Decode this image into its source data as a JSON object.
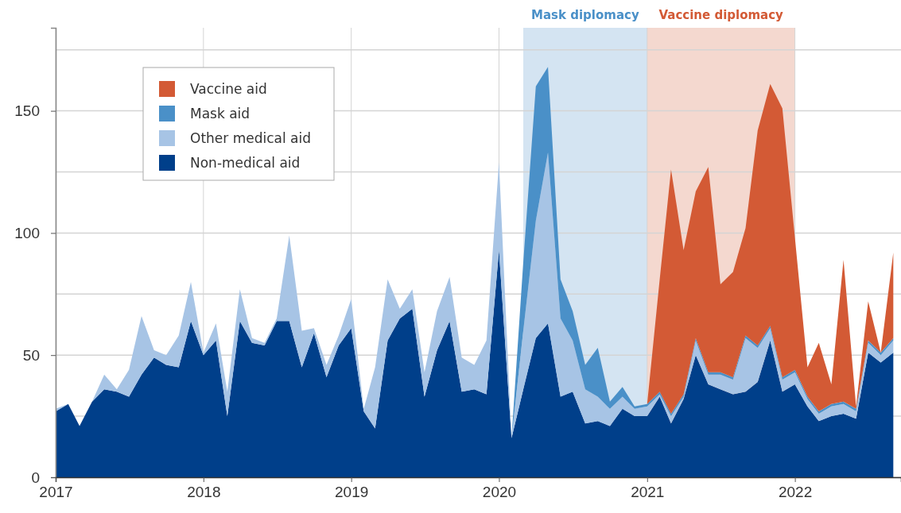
{
  "chart_data": {
    "type": "area",
    "stacked": true,
    "x": [
      "2017-01",
      "2017-02",
      "2017-03",
      "2017-04",
      "2017-05",
      "2017-06",
      "2017-07",
      "2017-08",
      "2017-09",
      "2017-10",
      "2017-11",
      "2017-12",
      "2018-01",
      "2018-02",
      "2018-03",
      "2018-04",
      "2018-05",
      "2018-06",
      "2018-07",
      "2018-08",
      "2018-09",
      "2018-10",
      "2018-11",
      "2018-12",
      "2019-01",
      "2019-02",
      "2019-03",
      "2019-04",
      "2019-05",
      "2019-06",
      "2019-07",
      "2019-08",
      "2019-09",
      "2019-10",
      "2019-11",
      "2019-12",
      "2020-01",
      "2020-02",
      "2020-03",
      "2020-04",
      "2020-05",
      "2020-06",
      "2020-07",
      "2020-08",
      "2020-09",
      "2020-10",
      "2020-11",
      "2020-12",
      "2021-01",
      "2021-02",
      "2021-03",
      "2021-04",
      "2021-05",
      "2021-06",
      "2021-07",
      "2021-08",
      "2021-09",
      "2021-10",
      "2021-11",
      "2021-12",
      "2022-01",
      "2022-02",
      "2022-03",
      "2022-04",
      "2022-05",
      "2022-06",
      "2022-07",
      "2022-08",
      "2022-09"
    ],
    "series": [
      {
        "name": "Non-medical aid",
        "color": "#003f8a",
        "values": [
          27,
          30,
          21,
          31,
          36,
          35,
          33,
          42,
          49,
          46,
          45,
          64,
          50,
          56,
          25,
          64,
          55,
          54,
          64,
          64,
          45,
          59,
          41,
          54,
          61,
          27,
          20,
          56,
          65,
          69,
          33,
          52,
          64,
          35,
          36,
          34,
          93,
          16,
          36,
          57,
          63,
          33,
          35,
          22,
          23,
          21,
          28,
          25,
          25,
          33,
          22,
          32,
          50,
          38,
          36,
          34,
          35,
          39,
          56,
          35,
          38,
          29,
          23,
          25,
          26,
          24,
          51,
          47,
          51
        ]
      },
      {
        "name": "Other medical aid",
        "color": "#a7c4e5",
        "values": [
          1,
          0,
          0,
          0,
          6,
          1,
          11,
          24,
          3,
          4,
          13,
          16,
          1,
          7,
          10,
          13,
          2,
          1,
          1,
          35,
          15,
          2,
          5,
          4,
          12,
          1,
          25,
          25,
          4,
          8,
          10,
          16,
          18,
          14,
          10,
          22,
          36,
          0,
          24,
          48,
          70,
          32,
          21,
          14,
          10,
          7,
          5,
          3,
          4,
          1,
          3,
          1,
          6,
          4,
          6,
          6,
          22,
          14,
          5,
          5,
          5,
          3,
          3,
          4,
          4,
          3,
          4,
          3,
          5
        ]
      },
      {
        "name": "Mask aid",
        "color": "#4a90c8",
        "values": [
          null,
          null,
          null,
          null,
          null,
          null,
          null,
          null,
          null,
          null,
          null,
          null,
          null,
          null,
          null,
          null,
          null,
          null,
          null,
          null,
          null,
          null,
          null,
          null,
          null,
          null,
          null,
          null,
          null,
          null,
          null,
          null,
          null,
          null,
          null,
          null,
          null,
          0,
          28,
          55,
          35,
          16,
          12,
          10,
          20,
          3,
          4,
          1,
          1,
          1,
          1,
          1,
          1,
          1,
          1,
          1,
          1,
          1,
          1,
          1,
          1,
          1,
          1,
          1,
          1,
          1,
          1,
          1,
          1
        ]
      },
      {
        "name": "Vaccine aid",
        "color": "#d35a35",
        "values": [
          null,
          null,
          null,
          null,
          null,
          null,
          null,
          null,
          null,
          null,
          null,
          null,
          null,
          null,
          null,
          null,
          null,
          null,
          null,
          null,
          null,
          null,
          null,
          null,
          null,
          null,
          null,
          null,
          null,
          null,
          null,
          null,
          null,
          null,
          null,
          null,
          null,
          null,
          null,
          null,
          null,
          null,
          null,
          null,
          null,
          null,
          null,
          null,
          0,
          46,
          100,
          59,
          60,
          84,
          36,
          43,
          44,
          88,
          99,
          110,
          54,
          12,
          28,
          8,
          58,
          1,
          16,
          0,
          35
        ]
      }
    ],
    "xlim": [
      "2017-01-01",
      "2022-09-20"
    ],
    "xticks": [
      {
        "value": "2017-01-01",
        "label": "2017"
      },
      {
        "value": "2018-01-01",
        "label": "2018"
      },
      {
        "value": "2019-01-01",
        "label": "2019"
      },
      {
        "value": "2020-01-01",
        "label": "2020"
      },
      {
        "value": "2021-01-01",
        "label": "2021"
      },
      {
        "value": "2022-01-01",
        "label": "2022"
      }
    ],
    "ylim": [
      0,
      184
    ],
    "yticks": [
      0,
      {
        "value": 25,
        "label": null
      },
      50,
      {
        "value": 75,
        "label": null
      },
      100,
      {
        "value": 125,
        "label": null
      },
      150,
      {
        "value": 175,
        "label": null
      }
    ],
    "grid": true,
    "legend": "top left",
    "bands": [
      {
        "axis": "x",
        "from": "2020-03-01",
        "to": "2021-01-01",
        "label": "Mask diplomacy",
        "color": "#4a90c8"
      },
      {
        "axis": "x",
        "from": "2021-01-01",
        "to": "2022-01-01",
        "label": "Vaccine diplomacy",
        "color": "#d35a35"
      }
    ]
  }
}
